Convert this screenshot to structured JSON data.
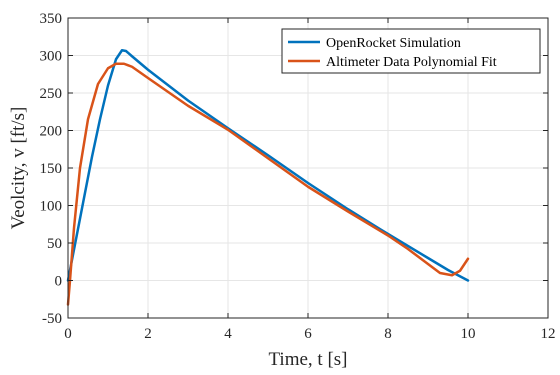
{
  "chart_data": {
    "type": "line",
    "title": "",
    "xlabel": "Time, t [s]",
    "ylabel": "Veolcity, v [ft/s]",
    "xlim": [
      0,
      12
    ],
    "ylim": [
      -50,
      350
    ],
    "xticks": [
      0,
      2,
      4,
      6,
      8,
      10,
      12
    ],
    "yticks": [
      -50,
      0,
      50,
      100,
      150,
      200,
      250,
      300,
      350
    ],
    "grid": true,
    "legend_position": "top-right",
    "series": [
      {
        "name": "OpenRocket Simulation",
        "color": "#0072BD",
        "x": [
          0,
          0.2,
          0.4,
          0.6,
          0.8,
          1.0,
          1.2,
          1.35,
          1.45,
          1.6,
          2.0,
          3.0,
          4.0,
          5.0,
          6.0,
          7.0,
          8.0,
          9.0,
          9.5,
          10.0
        ],
        "y": [
          0,
          55,
          110,
          165,
          215,
          260,
          295,
          307,
          306,
          299,
          281,
          240,
          203,
          167,
          130,
          95,
          62,
          30,
          14,
          0
        ]
      },
      {
        "name": "Altimeter Data Polynomial Fit",
        "color": "#D95319",
        "x": [
          0,
          0.05,
          0.15,
          0.3,
          0.5,
          0.75,
          1.0,
          1.2,
          1.4,
          1.6,
          2.0,
          3.0,
          4.0,
          5.0,
          6.0,
          7.0,
          8.0,
          8.5,
          9.0,
          9.3,
          9.6,
          9.8,
          10.0
        ],
        "y": [
          -32,
          0,
          70,
          150,
          215,
          262,
          283,
          289,
          289,
          285,
          270,
          233,
          201,
          163,
          125,
          92,
          60,
          42,
          22,
          10,
          7,
          13,
          29
        ]
      }
    ]
  }
}
